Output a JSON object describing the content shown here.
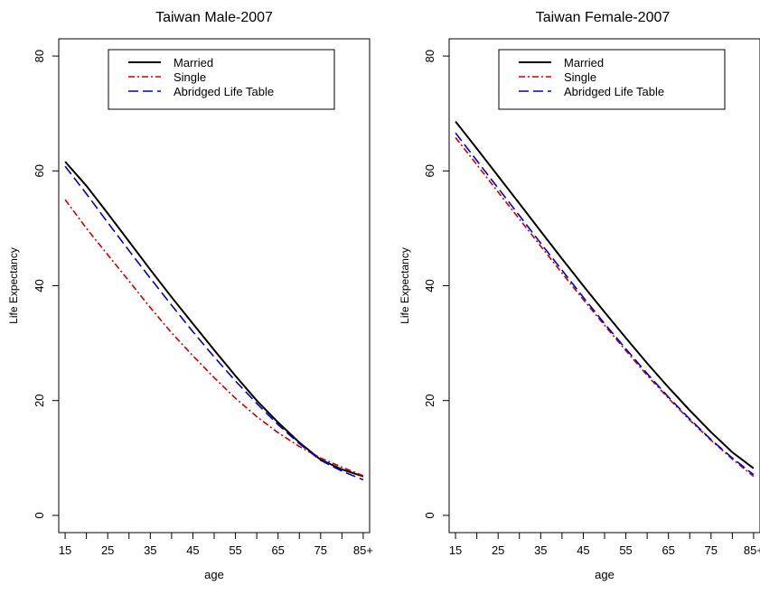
{
  "chart_data": [
    {
      "type": "line",
      "title": "Taiwan Male-2007",
      "xlabel": "age",
      "ylabel": "Life Expectancy",
      "x": [
        15,
        20,
        25,
        30,
        35,
        40,
        45,
        50,
        55,
        60,
        65,
        70,
        75,
        80,
        85
      ],
      "x_tick_labels": [
        "15",
        "25",
        "35",
        "45",
        "55",
        "65",
        "75",
        "85+"
      ],
      "x_tick_values": [
        15,
        25,
        35,
        45,
        55,
        65,
        75,
        85
      ],
      "y_ticks": [
        0,
        20,
        40,
        60,
        80
      ],
      "xlim": [
        13.5,
        86.5
      ],
      "ylim": [
        -3,
        83
      ],
      "legend": "top-center",
      "series": [
        {
          "name": "Married",
          "color": "#000000",
          "style": "solid",
          "values": [
            61.6,
            57.4,
            52.6,
            47.7,
            42.8,
            38.0,
            33.4,
            28.8,
            24.3,
            20.0,
            16.2,
            12.7,
            9.7,
            8.0,
            6.8
          ]
        },
        {
          "name": "Single",
          "color": "#cc0000",
          "style": "dashdot",
          "values": [
            55.0,
            50.0,
            45.4,
            40.8,
            36.2,
            31.8,
            27.8,
            24.0,
            20.4,
            17.2,
            14.4,
            12.0,
            10.0,
            8.4,
            6.9
          ]
        },
        {
          "name": "Abridged Life Table",
          "color": "#0000cc",
          "style": "longdash",
          "values": [
            60.8,
            56.0,
            51.0,
            46.1,
            41.3,
            36.6,
            32.0,
            27.6,
            23.4,
            19.5,
            15.8,
            12.5,
            9.6,
            7.7,
            6.2
          ]
        }
      ]
    },
    {
      "type": "line",
      "title": "Taiwan Female-2007",
      "xlabel": "age",
      "ylabel": "Life Expectancy",
      "x": [
        15,
        20,
        25,
        30,
        35,
        40,
        45,
        50,
        55,
        60,
        65,
        70,
        75,
        80,
        85
      ],
      "x_tick_labels": [
        "15",
        "25",
        "35",
        "45",
        "55",
        "65",
        "75",
        "85+"
      ],
      "x_tick_values": [
        15,
        25,
        35,
        45,
        55,
        65,
        75,
        85
      ],
      "y_ticks": [
        0,
        20,
        40,
        60,
        80
      ],
      "xlim": [
        13.5,
        86.5
      ],
      "ylim": [
        -3,
        83
      ],
      "legend": "top-center",
      "series": [
        {
          "name": "Married",
          "color": "#000000",
          "style": "solid",
          "values": [
            68.6,
            63.9,
            59.1,
            54.3,
            49.5,
            44.7,
            40.0,
            35.4,
            30.9,
            26.5,
            22.3,
            18.3,
            14.5,
            11.0,
            8.2
          ]
        },
        {
          "name": "Single",
          "color": "#cc0000",
          "style": "dashdot",
          "values": [
            65.8,
            61.1,
            56.3,
            51.6,
            46.9,
            42.2,
            37.6,
            33.1,
            28.7,
            24.4,
            20.4,
            16.6,
            13.1,
            9.8,
            6.8
          ]
        },
        {
          "name": "Abridged Life Table",
          "color": "#0000cc",
          "style": "longdash",
          "values": [
            66.6,
            61.8,
            57.0,
            52.2,
            47.4,
            42.7,
            38.0,
            33.4,
            29.0,
            24.7,
            20.6,
            16.8,
            13.2,
            10.0,
            7.1
          ]
        }
      ]
    }
  ]
}
